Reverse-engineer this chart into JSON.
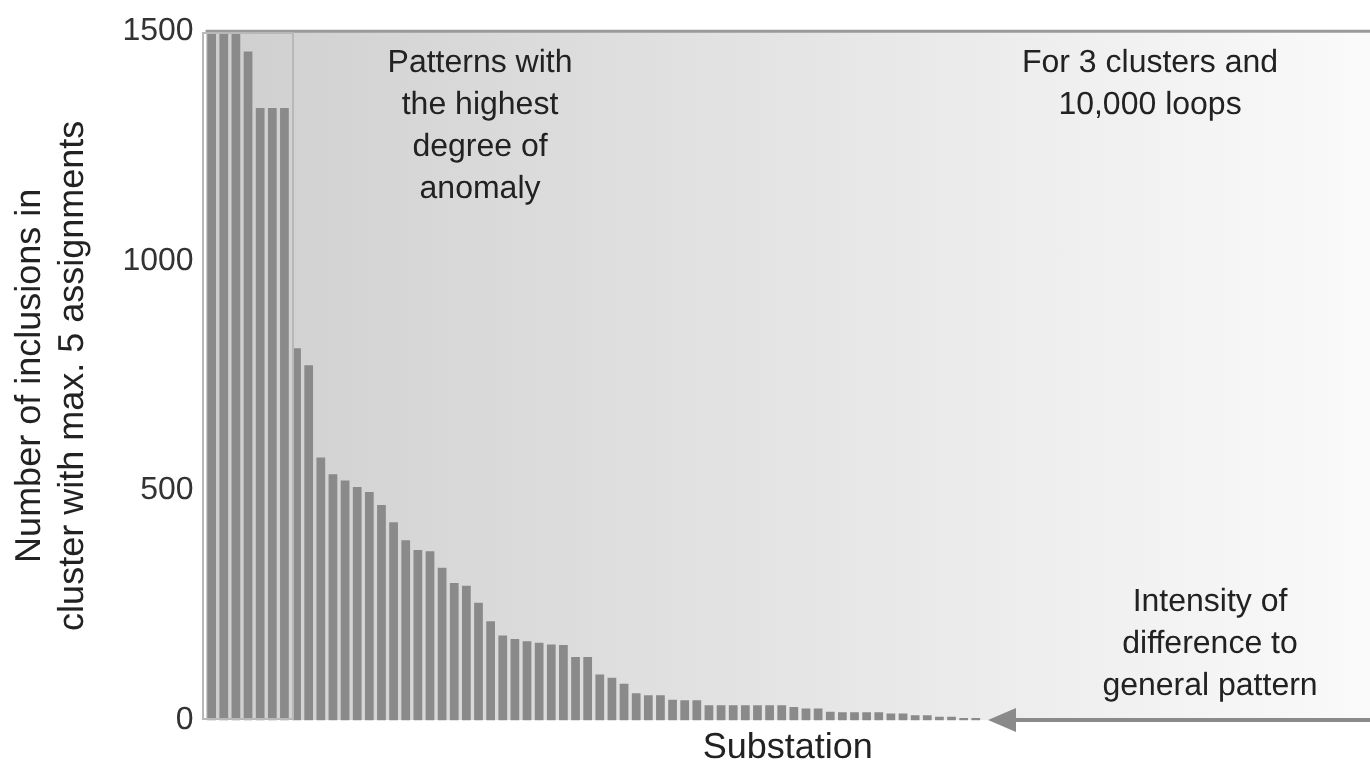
{
  "chart_data": {
    "type": "bar",
    "xlabel": "Substation",
    "ylabel": "Number of inclusions in cluster with max. 5 assignments",
    "annotations": [
      "Patterns with the highest degree of anomaly",
      "For 3 clusters and 10,000 loops",
      "Intensity of difference to general pattern"
    ],
    "categories": [
      null,
      null,
      null,
      null,
      null,
      null,
      null,
      null,
      null,
      null,
      null,
      null,
      null,
      null,
      null,
      null,
      null,
      null,
      null,
      null,
      null,
      null,
      null,
      null,
      null,
      null,
      null,
      null,
      null,
      null,
      null,
      null,
      null,
      null,
      null,
      null,
      null,
      null,
      null,
      null,
      null,
      null,
      null,
      null,
      null,
      null,
      null,
      null,
      null,
      null,
      null,
      null,
      null,
      null,
      null,
      null,
      null,
      null,
      null,
      null,
      null,
      null,
      null,
      null,
      null,
      null,
      null,
      null,
      null,
      null,
      null,
      null,
      null,
      null,
      null,
      null,
      null,
      null,
      null,
      null,
      null,
      null,
      null,
      null,
      null,
      null,
      null,
      null,
      null,
      null,
      null,
      null,
      null,
      null,
      null,
      null
    ],
    "values": [
      1500,
      1500,
      1500,
      1456,
      1333,
      1333,
      1333,
      810,
      773,
      572,
      536,
      522,
      508,
      497,
      469,
      431,
      392,
      371,
      368,
      332,
      299,
      293,
      256,
      216,
      185,
      177,
      172,
      169,
      165,
      164,
      138,
      138,
      100,
      93,
      80,
      59,
      55,
      55,
      45,
      44,
      44,
      33,
      33,
      33,
      33,
      33,
      33,
      33,
      29,
      26,
      26,
      19,
      18,
      18,
      18,
      18,
      15,
      15,
      11,
      11,
      8,
      8,
      5,
      5,
      null,
      null,
      null,
      null,
      null,
      null,
      null,
      null,
      null,
      null,
      null,
      null,
      null,
      null,
      null,
      null,
      null,
      null,
      null,
      null,
      null,
      null,
      null,
      null,
      null,
      null,
      null,
      null,
      null,
      null,
      null,
      null
    ],
    "color": "#8a8a8a",
    "ylim": [
      0,
      1500
    ],
    "yticks": [
      0,
      500,
      1000,
      1500
    ],
    "grid": false,
    "legend": false
  }
}
